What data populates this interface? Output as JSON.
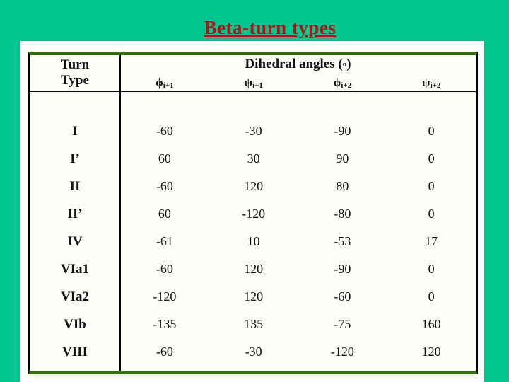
{
  "slide": {
    "title": "Beta-turn types"
  },
  "colors": {
    "background": "#00C690",
    "panel": "#FCFEF9",
    "table_frame_green": "#356E12",
    "table_line_black": "#000000",
    "title_red": "#B11414"
  },
  "table": {
    "header": {
      "turn_line1": "Turn",
      "turn_line2": "Type",
      "angles_label_pre": "Dihedral angles (",
      "angles_degree": "o",
      "angles_label_post": ")",
      "columns": [
        {
          "symbol": "ϕ",
          "sub": "i+1"
        },
        {
          "symbol": "ψ",
          "sub": "i+1"
        },
        {
          "symbol": "ϕ",
          "sub": "i+2"
        },
        {
          "symbol": "ψ",
          "sub": "i+2"
        }
      ]
    },
    "rows": [
      {
        "type": "I",
        "values": [
          "-60",
          "-30",
          "-90",
          "0"
        ]
      },
      {
        "type": "I’",
        "values": [
          "60",
          "30",
          "90",
          "0"
        ]
      },
      {
        "type": "II",
        "values": [
          "-60",
          "120",
          "80",
          "0"
        ]
      },
      {
        "type": "II’",
        "values": [
          "60",
          "-120",
          "-80",
          "0"
        ]
      },
      {
        "type": "IV",
        "values": [
          "-61",
          "10",
          "-53",
          "17"
        ]
      },
      {
        "type": "VIa1",
        "values": [
          "-60",
          "120",
          "-90",
          "0"
        ]
      },
      {
        "type": "VIa2",
        "values": [
          "-120",
          "120",
          "-60",
          "0"
        ]
      },
      {
        "type": "VIb",
        "values": [
          "-135",
          "135",
          "-75",
          "160"
        ]
      },
      {
        "type": "VIII",
        "values": [
          "-60",
          "-30",
          "-120",
          "120"
        ]
      }
    ]
  }
}
